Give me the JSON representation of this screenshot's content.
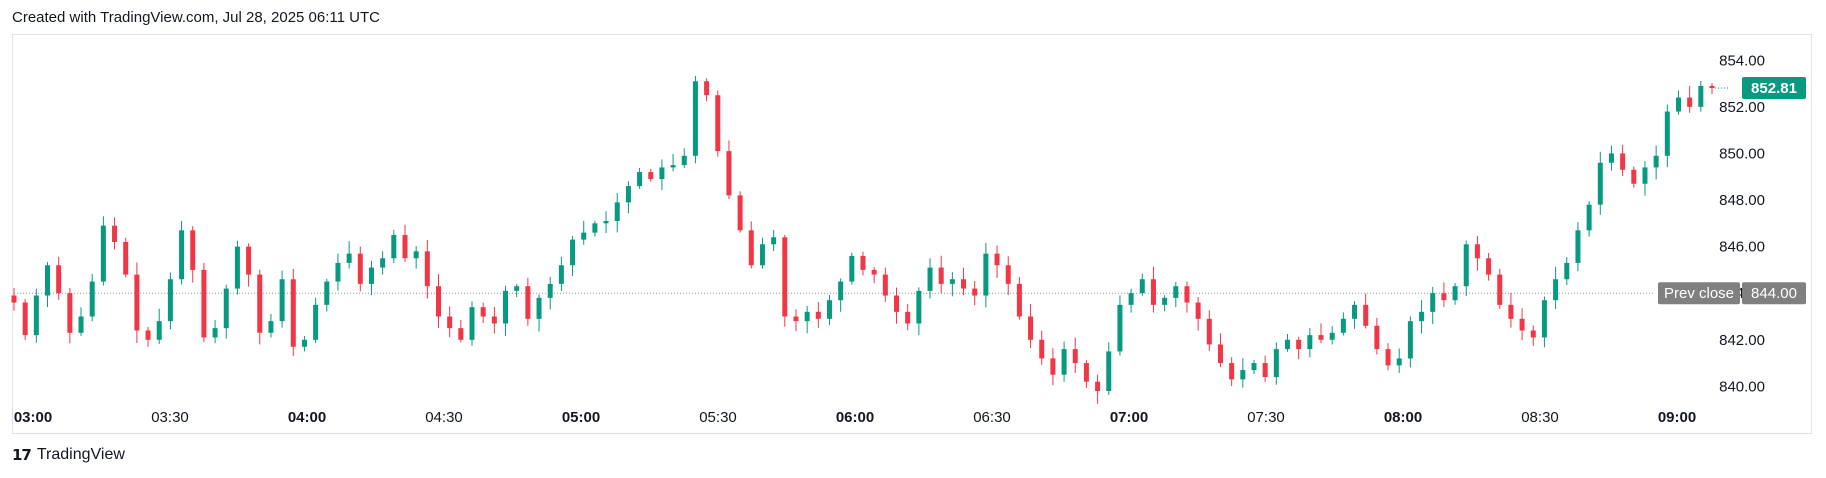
{
  "header": {
    "text": "Created with TradingView.com, Jul 28, 2025 06:11 UTC"
  },
  "footer": {
    "logo_icon": "tradingview-logo-icon",
    "brand": "TradingView"
  },
  "colors": {
    "up": "#089981",
    "down": "#f23645",
    "prev_close_bg": "#808080",
    "last_price_bg": "#089981",
    "grid": "#e0e3eb"
  },
  "chart_data": {
    "type": "candlestick",
    "ylim": [
      839.2,
      855.0
    ],
    "y_ticks": [
      840.0,
      842.0,
      844.0,
      846.0,
      848.0,
      850.0,
      852.0,
      854.0
    ],
    "x_ticks": [
      {
        "label": "03:00",
        "bold": true
      },
      {
        "label": "03:30",
        "bold": false
      },
      {
        "label": "04:00",
        "bold": true
      },
      {
        "label": "04:30",
        "bold": false
      },
      {
        "label": "05:00",
        "bold": true
      },
      {
        "label": "05:30",
        "bold": false
      },
      {
        "label": "06:00",
        "bold": true
      },
      {
        "label": "06:30",
        "bold": false
      },
      {
        "label": "07:00",
        "bold": true
      },
      {
        "label": "07:30",
        "bold": false
      },
      {
        "label": "08:00",
        "bold": true
      },
      {
        "label": "08:30",
        "bold": false
      },
      {
        "label": "09:00",
        "bold": true
      }
    ],
    "prev_close": {
      "label": "Prev close",
      "value": "844.00",
      "price": 844.0
    },
    "last_price": {
      "value": "852.81",
      "price": 852.81
    },
    "closes": [
      843.6,
      842.2,
      843.9,
      845.2,
      844.0,
      842.3,
      843.0,
      844.5,
      846.9,
      846.2,
      844.8,
      842.4,
      842.0,
      842.8,
      844.6,
      846.7,
      845.0,
      842.1,
      842.5,
      844.2,
      846.0,
      844.8,
      842.3,
      842.8,
      844.6,
      841.7,
      842.0,
      843.5,
      844.5,
      845.3,
      845.7,
      844.4,
      845.1,
      845.5,
      846.5,
      845.5,
      845.8,
      844.3,
      843.0,
      842.5,
      842.0,
      843.4,
      843.0,
      842.7,
      844.1,
      844.3,
      842.9,
      843.8,
      844.4,
      845.2,
      846.3,
      846.6,
      847.0,
      847.1,
      847.9,
      848.6,
      849.2,
      848.9,
      849.4,
      849.5,
      849.9,
      853.1,
      852.5,
      850.1,
      848.2,
      846.7,
      845.2,
      846.1,
      846.4,
      843.0,
      842.8,
      843.2,
      842.9,
      843.7,
      844.5,
      845.6,
      845.0,
      844.8,
      843.9,
      843.2,
      842.7,
      844.1,
      845.1,
      844.4,
      844.6,
      844.2,
      843.9,
      845.7,
      845.2,
      844.4,
      843.0,
      842.0,
      841.2,
      840.5,
      841.6,
      841.0,
      840.2,
      839.8,
      841.5,
      843.5,
      844.0,
      844.6,
      843.5,
      843.8,
      844.3,
      843.6,
      842.9,
      841.8,
      841.0,
      840.3,
      840.7,
      841.0,
      840.4,
      841.6,
      842.0,
      841.6,
      842.2,
      842.0,
      842.3,
      842.9,
      843.5,
      842.6,
      841.6,
      840.9,
      841.2,
      842.8,
      843.2,
      844.0,
      843.7,
      844.3,
      846.1,
      845.5,
      844.8,
      843.5,
      842.9,
      842.4,
      842.1,
      843.7,
      844.6,
      845.3,
      846.7,
      847.8,
      849.6,
      850.0,
      849.3,
      848.7,
      849.4,
      849.9,
      851.8,
      852.4,
      852.0,
      852.9,
      852.81
    ]
  }
}
